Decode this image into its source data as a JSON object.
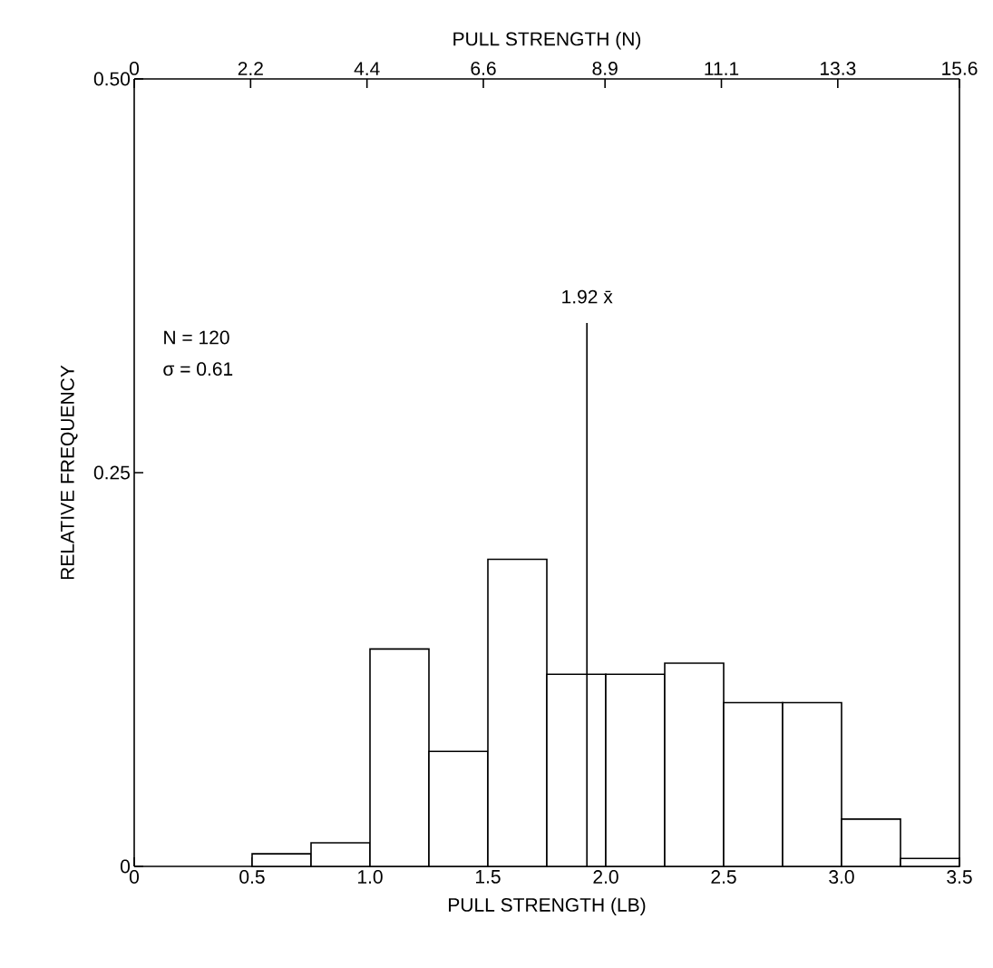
{
  "chart_data": {
    "type": "histogram",
    "xlabel": "PULL STRENGTH (LB)",
    "ylabel": "RELATIVE FREQUENCY",
    "x2label": "PULL STRENGTH (N)",
    "bins": [
      0.5,
      0.75,
      1.0,
      1.25,
      1.5,
      1.75,
      2.0,
      2.25,
      2.5,
      2.75,
      3.0,
      3.25,
      3.5
    ],
    "values": [
      0.008,
      0.015,
      0.138,
      0.073,
      0.195,
      0.122,
      0.122,
      0.129,
      0.104,
      0.104,
      0.03,
      0.005
    ],
    "color": "#ffffff",
    "xlim": [
      0,
      3.5
    ],
    "ylim": [
      0,
      0.5
    ],
    "xticks": [
      0,
      0.5,
      {
        "value": 1,
        "label": "1.0"
      },
      1.5,
      {
        "value": 2,
        "label": "2.0"
      },
      2.5,
      {
        "value": 3,
        "label": "3.0"
      },
      3.5
    ],
    "yticks": [
      0,
      0.25,
      {
        "value": 0.5,
        "label": "0.50"
      }
    ],
    "x2lim": [
      0,
      15.6
    ],
    "x2ticks": [
      0,
      2.2,
      4.4,
      6.6,
      8.9,
      11.1,
      13.3,
      15.6
    ],
    "ref_lines": [
      {
        "axis": "x",
        "value": 1.92,
        "label": "1.92 x̄"
      }
    ],
    "annotations": [
      "N = 120",
      "σ = 0.61"
    ]
  }
}
